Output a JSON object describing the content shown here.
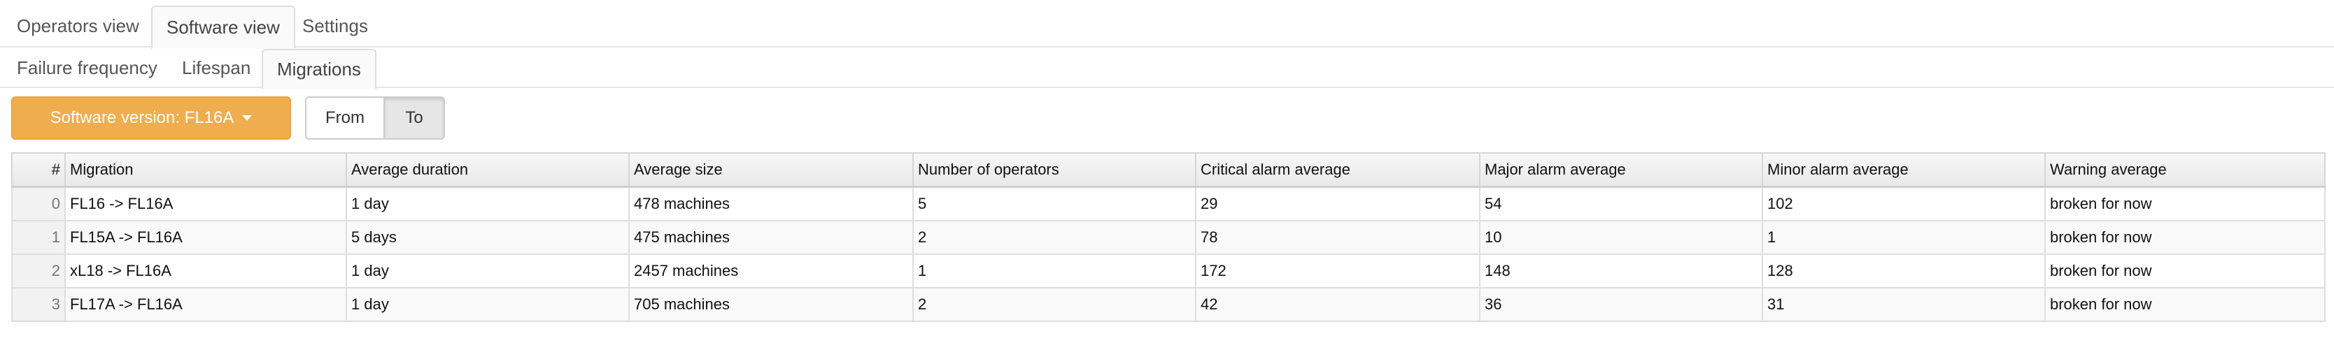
{
  "tabs_primary": [
    {
      "label": "Operators view"
    },
    {
      "label": "Software view",
      "active": true
    },
    {
      "label": "Settings"
    }
  ],
  "tabs_secondary": [
    {
      "label": "Failure frequency"
    },
    {
      "label": "Lifespan"
    },
    {
      "label": "Migrations",
      "active": true
    }
  ],
  "toolbar": {
    "software_version_label": "Software version: FL16A",
    "from_label": "From",
    "to_label": "To",
    "accent_color": "#f0ad4e"
  },
  "table": {
    "headers": [
      "#",
      "Migration",
      "Average duration",
      "Average size",
      "Number of operators",
      "Critical alarm average",
      "Major alarm average",
      "Minor alarm average",
      "Warning average"
    ],
    "rows": [
      [
        "0",
        "FL16 -> FL16A",
        "1 day",
        "478 machines",
        "5",
        "29",
        "54",
        "102",
        "broken for now"
      ],
      [
        "1",
        "FL15A -> FL16A",
        "5 days",
        "475 machines",
        "2",
        "78",
        "10",
        "1",
        "broken for now"
      ],
      [
        "2",
        "xL18 -> FL16A",
        "1 day",
        "2457 machines",
        "1",
        "172",
        "148",
        "128",
        "broken for now"
      ],
      [
        "3",
        "FL17A -> FL16A",
        "1 day",
        "705 machines",
        "2",
        "42",
        "36",
        "31",
        "broken for now"
      ]
    ]
  }
}
